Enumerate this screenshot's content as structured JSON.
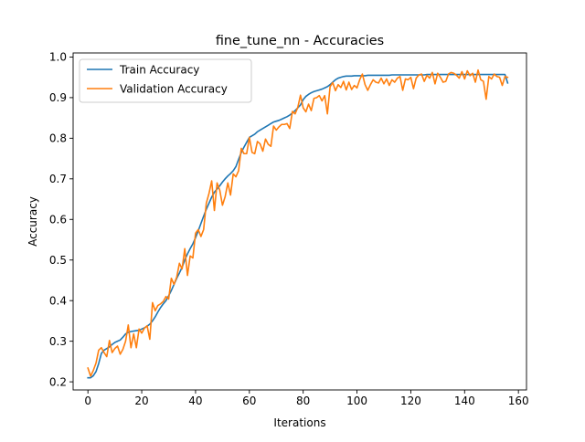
{
  "chart_data": {
    "type": "line",
    "title": "fine_tune_nn - Accuracies",
    "xlabel": "Iterations",
    "ylabel": "Accuracy",
    "xlim": [
      -5.5,
      163
    ],
    "ylim": [
      0.18,
      1.01
    ],
    "xticks": [
      0,
      20,
      40,
      60,
      80,
      100,
      120,
      140,
      160
    ],
    "xtick_labels": [
      "0",
      "20",
      "40",
      "60",
      "80",
      "100",
      "120",
      "140",
      "160"
    ],
    "yticks": [
      0.2,
      0.3,
      0.4,
      0.5,
      0.6,
      0.7,
      0.8,
      0.9,
      1.0
    ],
    "ytick_labels": [
      "0.2",
      "0.3",
      "0.4",
      "0.5",
      "0.6",
      "0.7",
      "0.8",
      "0.9",
      "1.0"
    ],
    "grid": false,
    "legend_position": "upper-left",
    "series": [
      {
        "name": "Train Accuracy",
        "color": "#1f77b4",
        "x": [
          0,
          1,
          2,
          3,
          4,
          5,
          6,
          7,
          8,
          9,
          10,
          11,
          12,
          13,
          14,
          15,
          16,
          17,
          18,
          19,
          20,
          21,
          22,
          23,
          24,
          25,
          26,
          27,
          28,
          29,
          30,
          31,
          32,
          33,
          34,
          35,
          36,
          37,
          38,
          39,
          40,
          41,
          42,
          43,
          44,
          45,
          46,
          47,
          48,
          49,
          50,
          51,
          52,
          53,
          54,
          55,
          56,
          57,
          58,
          59,
          60,
          61,
          62,
          63,
          64,
          65,
          66,
          67,
          68,
          69,
          70,
          71,
          72,
          73,
          74,
          75,
          76,
          77,
          78,
          79,
          80,
          81,
          82,
          83,
          84,
          85,
          86,
          87,
          88,
          89,
          90,
          91,
          92,
          93,
          94,
          95,
          96,
          97,
          98,
          99,
          100,
          101,
          102,
          103,
          104,
          105,
          106,
          107,
          108,
          109,
          110,
          111,
          112,
          113,
          114,
          115,
          116,
          117,
          118,
          119,
          120,
          121,
          122,
          123,
          124,
          125,
          126,
          127,
          128,
          129,
          130,
          131,
          132,
          133,
          134,
          135,
          136,
          137,
          138,
          139,
          140,
          141,
          142,
          143,
          144,
          145,
          146,
          147,
          148,
          149,
          150,
          151,
          152,
          153,
          154,
          155,
          156
        ],
        "y": [
          0.21,
          0.21,
          0.215,
          0.225,
          0.245,
          0.27,
          0.278,
          0.282,
          0.286,
          0.292,
          0.297,
          0.3,
          0.303,
          0.31,
          0.318,
          0.322,
          0.324,
          0.325,
          0.326,
          0.327,
          0.33,
          0.333,
          0.337,
          0.342,
          0.35,
          0.36,
          0.372,
          0.383,
          0.392,
          0.4,
          0.412,
          0.425,
          0.44,
          0.455,
          0.468,
          0.482,
          0.5,
          0.515,
          0.528,
          0.54,
          0.555,
          0.572,
          0.59,
          0.608,
          0.625,
          0.64,
          0.655,
          0.667,
          0.675,
          0.683,
          0.692,
          0.7,
          0.707,
          0.713,
          0.72,
          0.73,
          0.748,
          0.765,
          0.778,
          0.79,
          0.802,
          0.806,
          0.81,
          0.816,
          0.82,
          0.824,
          0.828,
          0.832,
          0.836,
          0.84,
          0.842,
          0.844,
          0.847,
          0.85,
          0.853,
          0.857,
          0.862,
          0.868,
          0.875,
          0.882,
          0.895,
          0.903,
          0.908,
          0.912,
          0.915,
          0.917,
          0.919,
          0.921,
          0.924,
          0.927,
          0.932,
          0.938,
          0.944,
          0.948,
          0.95,
          0.952,
          0.953,
          0.953,
          0.953,
          0.954,
          0.954,
          0.954,
          0.954,
          0.954,
          0.955,
          0.955,
          0.955,
          0.955,
          0.955,
          0.955,
          0.955,
          0.955,
          0.955,
          0.956,
          0.956,
          0.956,
          0.956,
          0.956,
          0.956,
          0.956,
          0.956,
          0.956,
          0.956,
          0.956,
          0.956,
          0.956,
          0.957,
          0.957,
          0.957,
          0.957,
          0.957,
          0.957,
          0.957,
          0.957,
          0.957,
          0.957,
          0.957,
          0.957,
          0.957,
          0.957,
          0.957,
          0.957,
          0.957,
          0.957,
          0.957,
          0.957,
          0.957,
          0.957,
          0.957,
          0.957,
          0.957,
          0.957,
          0.957,
          0.957,
          0.957,
          0.957,
          0.936
        ]
      },
      {
        "name": "Validation Accuracy",
        "color": "#ff7f0e",
        "x": [
          0,
          1,
          2,
          3,
          4,
          5,
          6,
          7,
          8,
          9,
          10,
          11,
          12,
          13,
          14,
          15,
          16,
          17,
          18,
          19,
          20,
          21,
          22,
          23,
          24,
          25,
          26,
          27,
          28,
          29,
          30,
          31,
          32,
          33,
          34,
          35,
          36,
          37,
          38,
          39,
          40,
          41,
          42,
          43,
          44,
          45,
          46,
          47,
          48,
          49,
          50,
          51,
          52,
          53,
          54,
          55,
          56,
          57,
          58,
          59,
          60,
          61,
          62,
          63,
          64,
          65,
          66,
          67,
          68,
          69,
          70,
          71,
          72,
          73,
          74,
          75,
          76,
          77,
          78,
          79,
          80,
          81,
          82,
          83,
          84,
          85,
          86,
          87,
          88,
          89,
          90,
          91,
          92,
          93,
          94,
          95,
          96,
          97,
          98,
          99,
          100,
          101,
          102,
          103,
          104,
          105,
          106,
          107,
          108,
          109,
          110,
          111,
          112,
          113,
          114,
          115,
          116,
          117,
          118,
          119,
          120,
          121,
          122,
          123,
          124,
          125,
          126,
          127,
          128,
          129,
          130,
          131,
          132,
          133,
          134,
          135,
          136,
          137,
          138,
          139,
          140,
          141,
          142,
          143,
          144,
          145,
          146,
          147,
          148,
          149,
          150,
          151,
          152,
          153,
          154,
          155,
          156
        ],
        "y": [
          0.234,
          0.214,
          0.228,
          0.246,
          0.278,
          0.284,
          0.272,
          0.262,
          0.302,
          0.272,
          0.282,
          0.288,
          0.268,
          0.28,
          0.3,
          0.34,
          0.284,
          0.318,
          0.284,
          0.33,
          0.32,
          0.332,
          0.338,
          0.305,
          0.395,
          0.375,
          0.388,
          0.392,
          0.398,
          0.41,
          0.404,
          0.455,
          0.44,
          0.458,
          0.492,
          0.478,
          0.528,
          0.462,
          0.51,
          0.505,
          0.566,
          0.575,
          0.558,
          0.575,
          0.64,
          0.664,
          0.695,
          0.622,
          0.69,
          0.672,
          0.635,
          0.656,
          0.69,
          0.66,
          0.712,
          0.705,
          0.72,
          0.775,
          0.762,
          0.762,
          0.802,
          0.765,
          0.762,
          0.792,
          0.786,
          0.768,
          0.798,
          0.785,
          0.78,
          0.83,
          0.82,
          0.828,
          0.834,
          0.834,
          0.836,
          0.824,
          0.866,
          0.86,
          0.876,
          0.906,
          0.875,
          0.865,
          0.884,
          0.868,
          0.898,
          0.9,
          0.905,
          0.892,
          0.905,
          0.86,
          0.927,
          0.937,
          0.917,
          0.932,
          0.925,
          0.94,
          0.919,
          0.938,
          0.92,
          0.93,
          0.924,
          0.944,
          0.958,
          0.932,
          0.918,
          0.932,
          0.944,
          0.938,
          0.936,
          0.948,
          0.934,
          0.946,
          0.93,
          0.944,
          0.938,
          0.948,
          0.952,
          0.918,
          0.946,
          0.944,
          0.95,
          0.922,
          0.948,
          0.956,
          0.958,
          0.94,
          0.955,
          0.948,
          0.962,
          0.934,
          0.96,
          0.95,
          0.938,
          0.94,
          0.958,
          0.962,
          0.96,
          0.955,
          0.948,
          0.964,
          0.946,
          0.966,
          0.954,
          0.96,
          0.938,
          0.968,
          0.944,
          0.94,
          0.896,
          0.952,
          0.946,
          0.958,
          0.952,
          0.95,
          0.93,
          0.952,
          0.95
        ]
      }
    ]
  }
}
